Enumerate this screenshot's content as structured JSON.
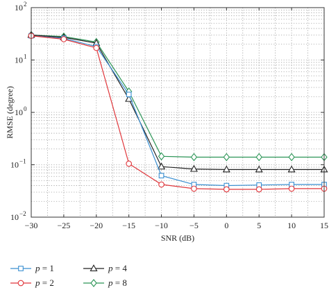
{
  "chart_data": {
    "type": "line",
    "title": "",
    "xlabel": "SNR (dB)",
    "ylabel": "RMSE (degree)",
    "xlim": [
      -30,
      15
    ],
    "ylim": [
      0.01,
      100
    ],
    "yscale": "log",
    "grid": true,
    "x": [
      -30,
      -25,
      -20,
      -15,
      -10,
      -5,
      0,
      5,
      10,
      15
    ],
    "x_ticks": [
      -30,
      -25,
      -20,
      -15,
      -10,
      -5,
      0,
      5,
      10,
      15
    ],
    "x_tick_labels": [
      "−30",
      "−25",
      "−20",
      "−15",
      "−10",
      "−5",
      "0",
      "5",
      "10",
      "15"
    ],
    "y_ticks": [
      {
        "base": "10",
        "exp": "−2",
        "value": 0.01
      },
      {
        "base": "10",
        "exp": "−1",
        "value": 0.1
      },
      {
        "base": "10",
        "exp": "0",
        "value": 1
      },
      {
        "base": "10",
        "exp": "1",
        "value": 10
      },
      {
        "base": "10",
        "exp": "2",
        "value": 100
      }
    ],
    "legend_position": "bottom",
    "series": [
      {
        "name": "p = 1",
        "var": "p",
        "eq": " = 1",
        "color": "#3a8fd1",
        "marker": "square",
        "values": [
          29,
          26,
          18,
          2.2,
          0.062,
          0.042,
          0.04,
          0.041,
          0.042,
          0.042
        ]
      },
      {
        "name": "p = 2",
        "var": "p",
        "eq": " = 2",
        "color": "#e0353a",
        "marker": "circle",
        "values": [
          29,
          25,
          17,
          0.105,
          0.042,
          0.035,
          0.034,
          0.034,
          0.035,
          0.035
        ]
      },
      {
        "name": "p = 4",
        "var": "p",
        "eq": " = 4",
        "color": "#222222",
        "marker": "triangle",
        "values": [
          30,
          27,
          21,
          1.8,
          0.092,
          0.083,
          0.081,
          0.081,
          0.081,
          0.081
        ]
      },
      {
        "name": "p = 8",
        "var": "p",
        "eq": " = 8",
        "color": "#2a9455",
        "marker": "diamond",
        "values": [
          30,
          28,
          22,
          2.5,
          0.145,
          0.14,
          0.14,
          0.14,
          0.14,
          0.14
        ]
      }
    ]
  }
}
